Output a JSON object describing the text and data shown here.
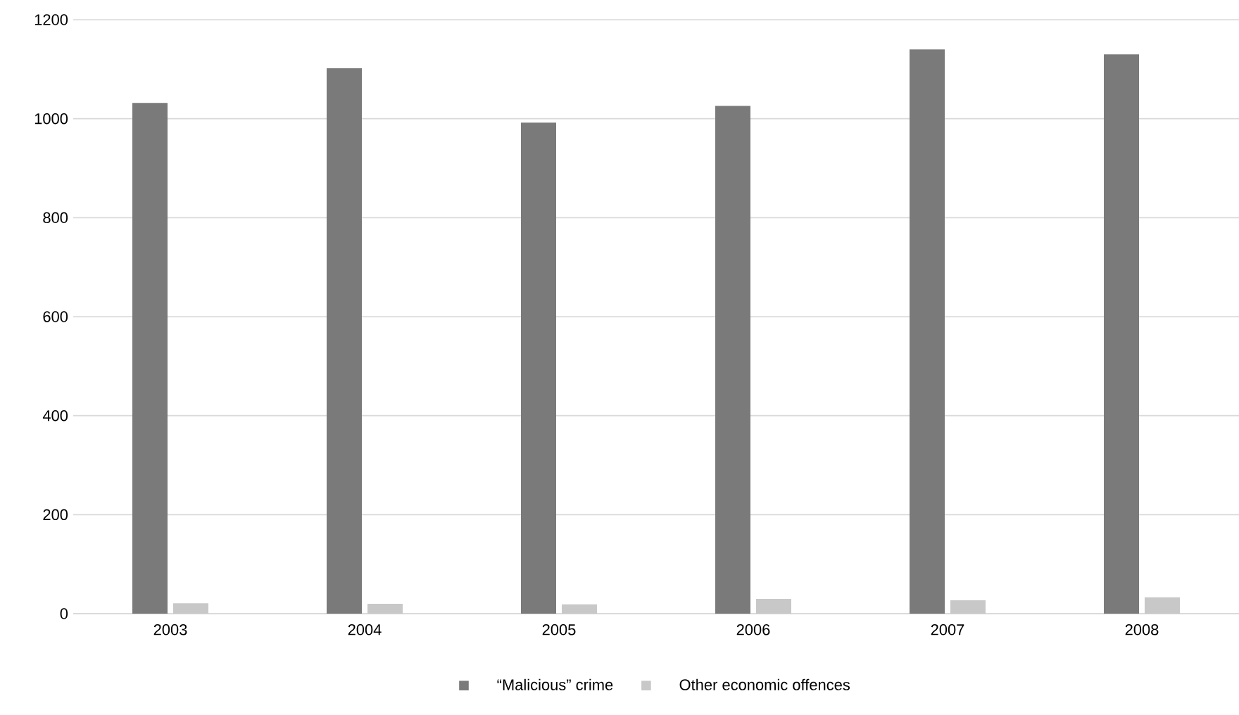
{
  "chart_data": {
    "type": "bar",
    "categories": [
      "2003",
      "2004",
      "2005",
      "2006",
      "2007",
      "2008"
    ],
    "series": [
      {
        "name": "“Malicious” crime",
        "color": "#7a7a7a",
        "values": [
          1032,
          1102,
          992,
          1026,
          1140,
          1130
        ]
      },
      {
        "name": "Other economic offences",
        "color": "#c8c8c8",
        "values": [
          21,
          20,
          19,
          30,
          27,
          33
        ]
      }
    ],
    "ylim": [
      0,
      1200
    ],
    "yticks": [
      0,
      200,
      400,
      600,
      800,
      1000,
      1200
    ],
    "grid": "y",
    "legend": "bottom"
  }
}
